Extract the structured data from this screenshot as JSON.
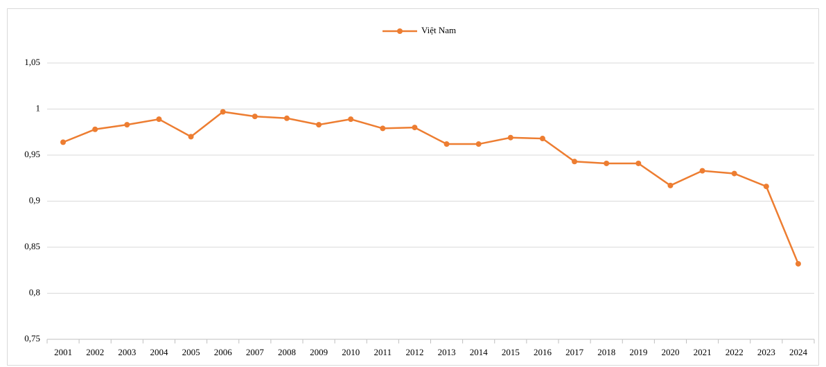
{
  "chart_data": {
    "type": "line",
    "categories": [
      "2001",
      "2002",
      "2003",
      "2004",
      "2005",
      "2006",
      "2007",
      "2008",
      "2009",
      "2010",
      "2011",
      "2012",
      "2013",
      "2014",
      "2015",
      "2016",
      "2017",
      "2018",
      "2019",
      "2020",
      "2021",
      "2022",
      "2023",
      "2024"
    ],
    "series": [
      {
        "name": "Việt Nam",
        "color": "#ed7d31",
        "values": [
          0.964,
          0.978,
          0.983,
          0.989,
          0.97,
          0.997,
          0.992,
          0.99,
          0.983,
          0.989,
          0.979,
          0.98,
          0.962,
          0.962,
          0.969,
          0.968,
          0.943,
          0.941,
          0.941,
          0.917,
          0.933,
          0.93,
          0.916,
          0.832
        ]
      }
    ],
    "ylim": [
      0.75,
      1.05
    ],
    "yticks": [
      {
        "value": 0.75,
        "label": "0,75"
      },
      {
        "value": 0.8,
        "label": "0,8"
      },
      {
        "value": 0.85,
        "label": "0,85"
      },
      {
        "value": 0.9,
        "label": "0,9"
      },
      {
        "value": 0.95,
        "label": "0,95"
      },
      1,
      {
        "value": 1.05,
        "label": "1,05"
      }
    ],
    "grid": true,
    "legend": "top"
  }
}
